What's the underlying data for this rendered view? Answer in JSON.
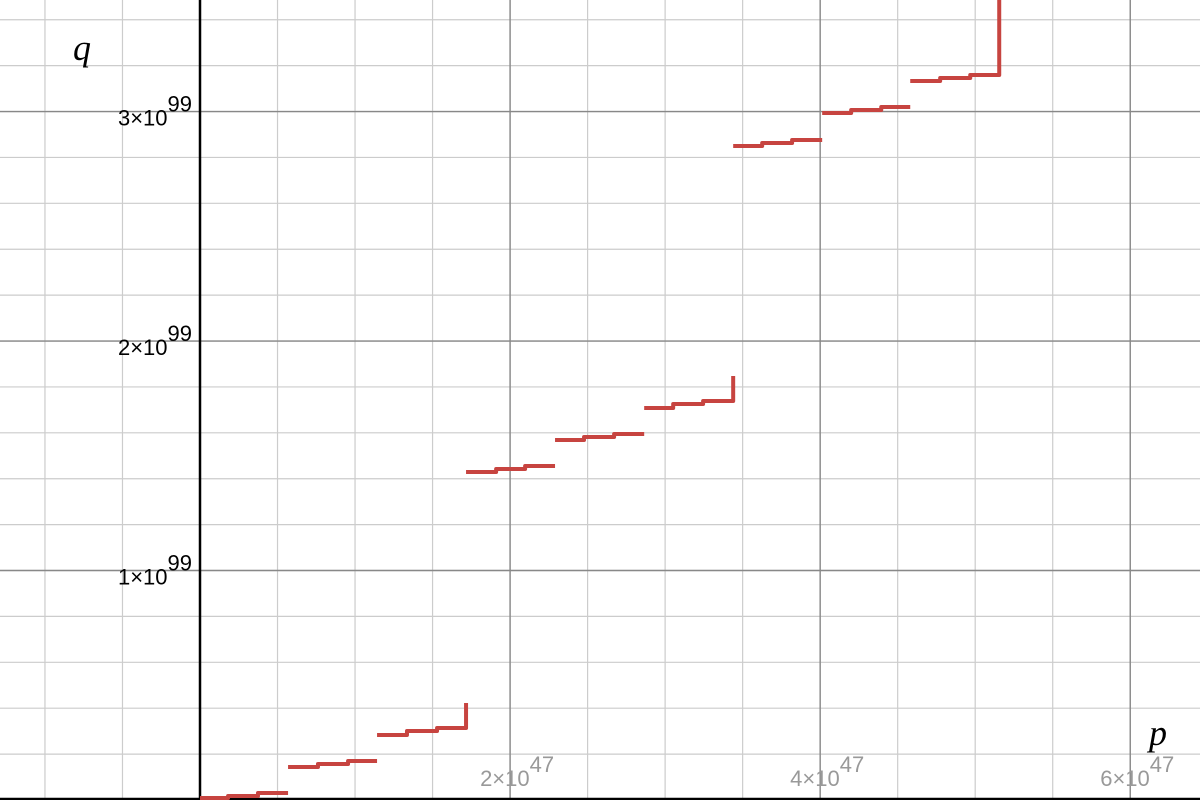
{
  "chart_data": {
    "type": "line",
    "xlabel": "p",
    "ylabel": "q",
    "xlim": [
      -1.29e+47,
      6.45e+47
    ],
    "ylim": [
      0,
      3.486e+99
    ],
    "xticks": [
      {
        "value": 2e+47,
        "label": "2×10",
        "power": "47"
      },
      {
        "value": 4e+47,
        "label": "4×10",
        "power": "47"
      },
      {
        "value": 6e+47,
        "label": "6×10",
        "power": "47"
      }
    ],
    "yticks": [
      {
        "value": 1e+99,
        "label": "1×10",
        "power": "99"
      },
      {
        "value": 2e+99,
        "label": "2×10",
        "power": "99"
      },
      {
        "value": 3e+99,
        "label": "3×10",
        "power": "99"
      }
    ],
    "grid": true,
    "minor_divisions": [
      4,
      5
    ],
    "series": [
      {
        "color": "#c74440",
        "x": [
          0,
          1.81e+46,
          1.81e+46,
          3.74e+46,
          3.74e+46,
          5.68e+46,
          null,
          5.68e+46,
          7.61e+46,
          7.61e+46,
          9.55e+46,
          9.55e+46,
          1.142e+47,
          null,
          1.142e+47,
          1.335e+47,
          1.335e+47,
          1.529e+47,
          1.529e+47,
          1.716e+47,
          1.716e+47,
          null,
          1.716e+47,
          1.91e+47,
          1.91e+47,
          2.097e+47,
          2.097e+47,
          2.29e+47,
          null,
          2.29e+47,
          2.477e+47,
          2.477e+47,
          2.671e+47,
          2.671e+47,
          2.865e+47,
          null,
          2.865e+47,
          3.052e+47,
          3.052e+47,
          3.245e+47,
          3.245e+47,
          3.439e+47,
          3.439e+47,
          null,
          3.439e+47,
          3.626e+47,
          3.626e+47,
          3.819e+47,
          3.819e+47,
          4.013e+47,
          null,
          4.013e+47,
          4.2e+47,
          4.2e+47,
          4.394e+47,
          4.394e+47,
          4.581e+47,
          null,
          4.581e+47,
          4.774e+47,
          4.774e+47,
          4.968e+47,
          4.968e+47,
          5.155e+47,
          5.155e+47
        ],
        "values": [
          8.7e+96,
          8.7e+96,
          1.74e+97,
          1.74e+97,
          3.05e+97,
          3.05e+97,
          null,
          1.438e+98,
          1.438e+98,
          1.569e+98,
          1.569e+98,
          1.699e+98,
          1.699e+98,
          null,
          2.832e+98,
          2.832e+98,
          3.007e+98,
          3.007e+98,
          3.137e+98,
          3.137e+98,
          4.227e+98,
          null,
          1.4292e+99,
          1.4292e+99,
          1.4423e+99,
          1.4423e+99,
          1.4553e+99,
          1.4553e+99,
          null,
          1.5686e+99,
          1.5686e+99,
          1.5817e+99,
          1.5817e+99,
          1.5948e+99,
          1.5948e+99,
          null,
          1.7081e+99,
          1.7081e+99,
          1.7255e+99,
          1.7255e+99,
          1.7386e+99,
          1.7386e+99,
          1.8475e+99,
          null,
          2.8497e+99,
          2.8497e+99,
          2.8627e+99,
          2.8627e+99,
          2.8758e+99,
          2.8758e+99,
          null,
          2.9935e+99,
          2.9935e+99,
          3.0065e+99,
          3.0065e+99,
          3.0196e+99,
          3.0196e+99,
          null,
          3.1329e+99,
          3.1329e+99,
          3.146e+99,
          3.146e+99,
          3.159e+99,
          3.159e+99,
          3.5e+99
        ]
      }
    ]
  }
}
